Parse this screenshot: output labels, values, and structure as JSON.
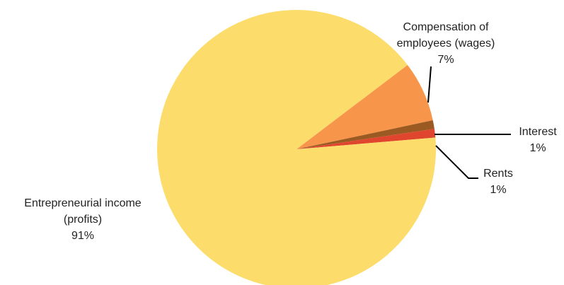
{
  "chart_data": {
    "type": "pie",
    "title": "",
    "slices": [
      {
        "name": "Compensation of employees (wages)",
        "label_lines": [
          "Compensation of",
          "employees (wages)"
        ],
        "value": 7,
        "value_label": "7%",
        "color": "#F7964A"
      },
      {
        "name": "Interest",
        "label_lines": [
          "Interest"
        ],
        "value": 1,
        "value_label": "1%",
        "color": "#9A5A22"
      },
      {
        "name": "Rents",
        "label_lines": [
          "Rents"
        ],
        "value": 1,
        "value_label": "1%",
        "color": "#E0452E"
      },
      {
        "name": "Entrepreneurial income (profits)",
        "label_lines": [
          "Entrepreneurial income",
          "(profits)"
        ],
        "value": 91,
        "value_label": "91%",
        "color": "#FCDC6A"
      }
    ],
    "legend": "none",
    "grid": false
  }
}
